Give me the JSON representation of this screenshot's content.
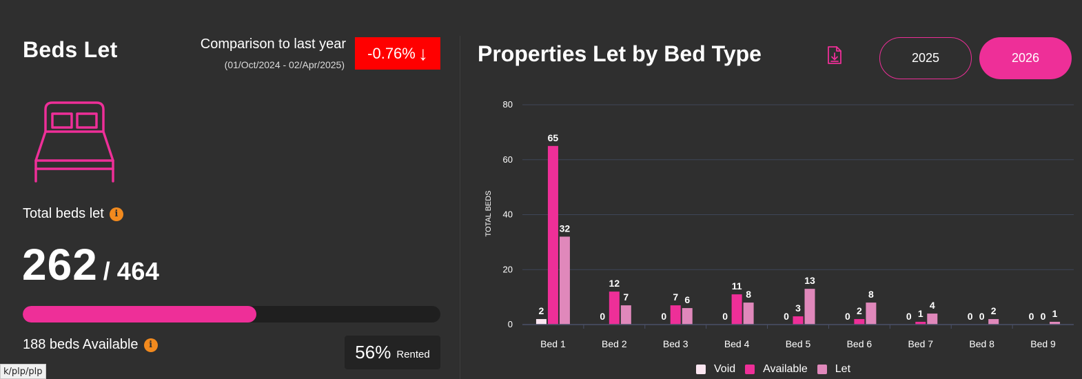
{
  "beds_let": {
    "title": "Beds Let",
    "comparison_title": "Comparison to last year",
    "comparison_range": "(01/Oct/2024 - 02/Apr/2025)",
    "comparison_value": "-0.76%",
    "comparison_arrow": "↓",
    "total_label": "Total beds let",
    "let_count": "262",
    "total_count": "464",
    "progress_fraction": 0.56,
    "available_label": "188 beds Available",
    "rented_pct": "56%",
    "rented_label": "Rented"
  },
  "status_bar": {
    "url": "k/plp/plp"
  },
  "chart_panel": {
    "title": "Properties Let by Bed Type",
    "years": [
      "2025",
      "2026"
    ],
    "selected_year": "2026"
  },
  "colors": {
    "void": "#fbe6f1",
    "available": "#ee2f98",
    "let": "#e088bb",
    "accent": "#ee2f98",
    "badge_red": "#ff0000",
    "info_orange": "#f28a1e"
  },
  "chart_data": {
    "type": "bar",
    "ylabel": "TOTAL BEDS",
    "ylim": [
      0,
      80
    ],
    "yticks": [
      0,
      20,
      40,
      60,
      80
    ],
    "categories": [
      "Bed 1",
      "Bed 2",
      "Bed 3",
      "Bed 4",
      "Bed 5",
      "Bed 6",
      "Bed 7",
      "Bed 8",
      "Bed 9"
    ],
    "series": [
      {
        "name": "Void",
        "values": [
          2,
          0,
          0,
          0,
          0,
          0,
          0,
          0,
          0
        ]
      },
      {
        "name": "Available",
        "values": [
          65,
          12,
          7,
          11,
          3,
          2,
          1,
          0,
          0
        ]
      },
      {
        "name": "Let",
        "values": [
          32,
          7,
          6,
          8,
          13,
          8,
          4,
          2,
          1
        ]
      }
    ],
    "grid": true,
    "legend_position": "bottom"
  }
}
